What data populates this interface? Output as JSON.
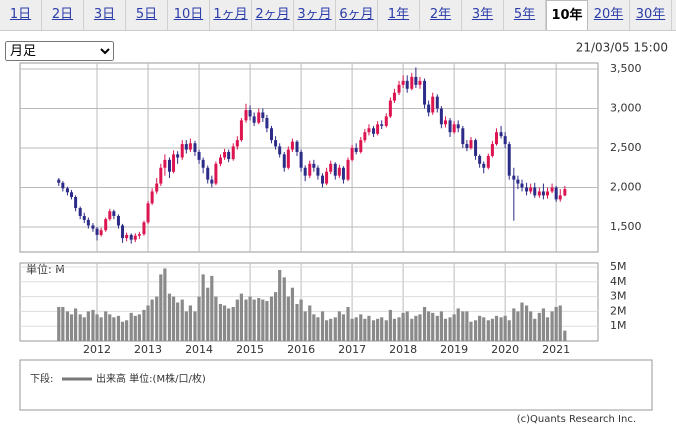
{
  "tabs": [
    "1日",
    "2日",
    "3日",
    "5日",
    "10日",
    "1ヶ月",
    "2ヶ月",
    "3ヶ月",
    "6ヶ月",
    "1年",
    "2年",
    "3年",
    "5年",
    "10年",
    "20年",
    "30年"
  ],
  "selected_tab": 13,
  "period_select": "月足",
  "timestamp": "21/03/05 15:00",
  "legend_prefix": "下段:",
  "copyright": "(c)Quants Research Inc.",
  "chart_data": {
    "type": "candlestick",
    "up_color": "#dc1450",
    "down_color": "#2c2c88",
    "grid": true,
    "xlim": [
      2010.49,
      2021.82
    ],
    "xticks": [
      2012,
      2013,
      2014,
      2015,
      2016,
      2017,
      2018,
      2019,
      2020,
      2021
    ],
    "ylim": [
      1184,
      3576
    ],
    "yticks": [
      {
        "value": 3500,
        "label": "3,500"
      },
      {
        "value": 3000,
        "label": "3,000"
      },
      {
        "value": 2500,
        "label": "2,500"
      },
      {
        "value": 2000,
        "label": "2,000"
      },
      {
        "value": 1500,
        "label": "1,500"
      }
    ],
    "x": [
      2011.25,
      2011.33,
      2011.42,
      2011.5,
      2011.58,
      2011.67,
      2011.75,
      2011.83,
      2011.92,
      2012.0,
      2012.08,
      2012.17,
      2012.25,
      2012.33,
      2012.42,
      2012.5,
      2012.58,
      2012.67,
      2012.75,
      2012.83,
      2012.92,
      2013.0,
      2013.08,
      2013.17,
      2013.25,
      2013.33,
      2013.42,
      2013.5,
      2013.58,
      2013.67,
      2013.75,
      2013.83,
      2013.92,
      2014.0,
      2014.08,
      2014.17,
      2014.25,
      2014.33,
      2014.42,
      2014.5,
      2014.58,
      2014.67,
      2014.75,
      2014.83,
      2014.92,
      2015.0,
      2015.08,
      2015.17,
      2015.25,
      2015.33,
      2015.42,
      2015.5,
      2015.58,
      2015.67,
      2015.75,
      2015.83,
      2015.92,
      2016.0,
      2016.08,
      2016.17,
      2016.25,
      2016.33,
      2016.42,
      2016.5,
      2016.58,
      2016.67,
      2016.75,
      2016.83,
      2016.92,
      2017.0,
      2017.08,
      2017.17,
      2017.25,
      2017.33,
      2017.42,
      2017.5,
      2017.58,
      2017.67,
      2017.75,
      2017.83,
      2017.92,
      2018.0,
      2018.08,
      2018.17,
      2018.25,
      2018.33,
      2018.42,
      2018.5,
      2018.58,
      2018.67,
      2018.75,
      2018.83,
      2018.92,
      2019.0,
      2019.08,
      2019.17,
      2019.25,
      2019.33,
      2019.42,
      2019.5,
      2019.58,
      2019.67,
      2019.75,
      2019.83,
      2019.92,
      2020.0,
      2020.08,
      2020.17,
      2020.25,
      2020.33,
      2020.42,
      2020.5,
      2020.58,
      2020.67,
      2020.75,
      2020.83,
      2020.92,
      2021.0,
      2021.08,
      2021.17
    ],
    "open": [
      2100,
      2060,
      1990,
      1940,
      1880,
      1740,
      1640,
      1590,
      1520,
      1480,
      1400,
      1460,
      1600,
      1700,
      1640,
      1520,
      1360,
      1400,
      1340,
      1390,
      1410,
      1560,
      1800,
      1950,
      2050,
      2250,
      2350,
      2200,
      2420,
      2380,
      2550,
      2480,
      2560,
      2450,
      2350,
      2250,
      2100,
      2050,
      2300,
      2380,
      2450,
      2360,
      2520,
      2600,
      2850,
      2980,
      2900,
      2820,
      2950,
      2880,
      2750,
      2600,
      2520,
      2420,
      2250,
      2480,
      2580,
      2450,
      2250,
      2150,
      2300,
      2250,
      2150,
      2050,
      2200,
      2300,
      2150,
      2250,
      2100,
      2350,
      2500,
      2450,
      2600,
      2700,
      2750,
      2680,
      2800,
      2780,
      2900,
      3100,
      3200,
      3300,
      3350,
      3250,
      3400,
      3300,
      3350,
      3050,
      2950,
      3150,
      3000,
      2800,
      2850,
      2700,
      2800,
      2750,
      2550,
      2500,
      2600,
      2400,
      2300,
      2250,
      2400,
      2550,
      2700,
      2650,
      2550,
      2150,
      2100,
      2050,
      2000,
      1950,
      2000,
      1900,
      1950,
      1900,
      1950,
      2000,
      1850,
      1900
    ],
    "high": [
      2120,
      2080,
      2010,
      1970,
      1900,
      1760,
      1680,
      1620,
      1550,
      1500,
      1490,
      1620,
      1730,
      1720,
      1660,
      1540,
      1430,
      1420,
      1420,
      1440,
      1580,
      1830,
      1990,
      2120,
      2300,
      2420,
      2380,
      2470,
      2460,
      2600,
      2600,
      2620,
      2590,
      2480,
      2380,
      2280,
      2150,
      2330,
      2420,
      2490,
      2480,
      2560,
      2650,
      2880,
      3060,
      3040,
      2950,
      3000,
      3000,
      2920,
      2780,
      2650,
      2560,
      2450,
      2520,
      2620,
      2600,
      2480,
      2280,
      2340,
      2350,
      2280,
      2180,
      2250,
      2340,
      2320,
      2290,
      2270,
      2380,
      2540,
      2560,
      2640,
      2740,
      2800,
      2780,
      2840,
      2850,
      2940,
      3140,
      3250,
      3350,
      3420,
      3420,
      3450,
      3520,
      3400,
      3380,
      3100,
      3200,
      3180,
      3030,
      2900,
      2880,
      2840,
      2850,
      2780,
      2600,
      2640,
      2620,
      2420,
      2330,
      2430,
      2590,
      2750,
      2780,
      2700,
      2580,
      2250,
      2150,
      2100,
      2060,
      2050,
      2060,
      2000,
      2050,
      2000,
      2050,
      2020,
      1980,
      2020
    ],
    "low": [
      2020,
      1950,
      1900,
      1850,
      1700,
      1600,
      1550,
      1480,
      1440,
      1330,
      1380,
      1440,
      1580,
      1600,
      1480,
      1300,
      1320,
      1290,
      1310,
      1350,
      1390,
      1540,
      1780,
      1920,
      2020,
      2150,
      2120,
      2180,
      2300,
      2350,
      2430,
      2450,
      2400,
      2300,
      2180,
      2050,
      2000,
      2030,
      2270,
      2350,
      2320,
      2340,
      2480,
      2580,
      2820,
      2850,
      2780,
      2800,
      2830,
      2700,
      2560,
      2480,
      2380,
      2200,
      2230,
      2450,
      2400,
      2200,
      2080,
      2120,
      2200,
      2100,
      2000,
      2030,
      2170,
      2100,
      2120,
      2050,
      2080,
      2330,
      2420,
      2430,
      2570,
      2660,
      2640,
      2660,
      2740,
      2760,
      2880,
      3070,
      3170,
      3260,
      3200,
      3230,
      3260,
      3250,
      3000,
      2900,
      2920,
      2950,
      2750,
      2760,
      2640,
      2680,
      2700,
      2500,
      2460,
      2480,
      2350,
      2250,
      2180,
      2230,
      2380,
      2530,
      2620,
      2500,
      2100,
      1580,
      1980,
      1950,
      1900,
      1920,
      1870,
      1870,
      1850,
      1860,
      1930,
      1820,
      1820,
      1890
    ],
    "close": [
      2060,
      1990,
      1940,
      1880,
      1740,
      1640,
      1590,
      1520,
      1480,
      1400,
      1460,
      1600,
      1700,
      1640,
      1520,
      1360,
      1400,
      1340,
      1390,
      1410,
      1560,
      1800,
      1950,
      2050,
      2250,
      2350,
      2200,
      2420,
      2380,
      2550,
      2480,
      2560,
      2450,
      2350,
      2250,
      2100,
      2050,
      2300,
      2380,
      2450,
      2360,
      2520,
      2600,
      2850,
      2980,
      2900,
      2820,
      2950,
      2880,
      2750,
      2600,
      2520,
      2420,
      2250,
      2480,
      2580,
      2450,
      2250,
      2150,
      2300,
      2250,
      2150,
      2050,
      2200,
      2300,
      2150,
      2250,
      2100,
      2350,
      2500,
      2450,
      2600,
      2700,
      2750,
      2680,
      2800,
      2780,
      2900,
      3100,
      3200,
      3300,
      3350,
      3250,
      3400,
      3300,
      3350,
      3050,
      2950,
      3150,
      3000,
      2800,
      2850,
      2700,
      2800,
      2750,
      2550,
      2500,
      2600,
      2400,
      2300,
      2250,
      2400,
      2550,
      2700,
      2650,
      2550,
      2150,
      2100,
      2050,
      2000,
      1950,
      2000,
      1900,
      1950,
      1900,
      1950,
      2000,
      1850,
      1900,
      1980
    ],
    "volume": {
      "name": "出来高 単位:(M株/口/枚)",
      "unit_label": "単位: M",
      "color": "#8a8a8a",
      "ylim": [
        0,
        5.27
      ],
      "yticks": [
        {
          "value": 5,
          "label": "5M"
        },
        {
          "value": 4,
          "label": "4M"
        },
        {
          "value": 3,
          "label": "3M"
        },
        {
          "value": 2,
          "label": "2M"
        },
        {
          "value": 1,
          "label": "1M"
        }
      ],
      "values": [
        2.3,
        2.3,
        2.0,
        1.8,
        2.2,
        1.8,
        1.6,
        2.0,
        2.1,
        1.8,
        1.6,
        2.0,
        1.8,
        1.6,
        1.7,
        1.3,
        1.4,
        1.9,
        1.7,
        1.8,
        2.1,
        2.4,
        2.8,
        3.0,
        4.5,
        4.9,
        3.2,
        3.0,
        2.6,
        2.8,
        2.0,
        2.4,
        2.0,
        3.0,
        4.5,
        3.6,
        4.4,
        3.0,
        2.5,
        2.4,
        2.2,
        2.3,
        2.8,
        3.2,
        2.8,
        3.0,
        2.8,
        2.9,
        2.8,
        2.7,
        3.0,
        3.3,
        4.8,
        4.3,
        3.0,
        3.6,
        2.5,
        2.8,
        2.0,
        2.4,
        1.8,
        1.6,
        2.0,
        1.4,
        1.5,
        1.6,
        2.0,
        1.8,
        2.3,
        1.5,
        1.6,
        1.8,
        1.5,
        1.7,
        1.4,
        1.5,
        1.6,
        1.4,
        2.1,
        1.5,
        1.6,
        1.9,
        2.0,
        1.5,
        1.7,
        1.8,
        2.3,
        2.0,
        1.9,
        1.7,
        2.0,
        1.5,
        1.6,
        1.8,
        2.2,
        2.0,
        2.0,
        1.3,
        1.4,
        1.7,
        1.6,
        1.4,
        1.5,
        1.7,
        1.6,
        1.7,
        1.4,
        2.2,
        2.0,
        2.6,
        2.4,
        2.0,
        1.5,
        1.9,
        2.2,
        1.6,
        2.0,
        2.3,
        2.4,
        0.7
      ]
    }
  }
}
